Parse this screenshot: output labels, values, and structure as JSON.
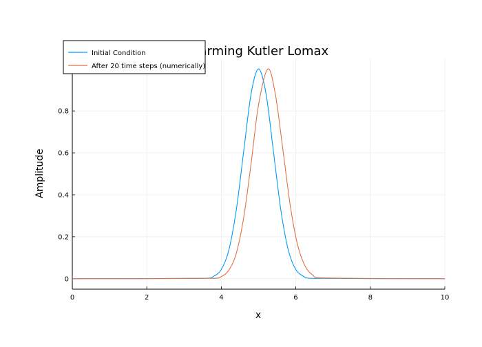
{
  "chart_data": {
    "type": "line",
    "title": "Warming Kutler Lomax",
    "xlabel": "x",
    "ylabel": "Amplitude",
    "xlim": [
      0,
      10
    ],
    "ylim": [
      -0.05,
      1.05
    ],
    "x_ticks": [
      0,
      2,
      4,
      6,
      8,
      10
    ],
    "x_tick_labels": [
      "0",
      "2",
      "4",
      "6",
      "8",
      "10"
    ],
    "y_ticks": [
      0,
      0.2,
      0.4,
      0.6,
      0.8
    ],
    "y_tick_labels": [
      "0",
      "0.2",
      "0.4",
      "0.6",
      "0.8"
    ],
    "grid": true,
    "legend_position": "top-left",
    "series": [
      {
        "name": "Initial Condition",
        "color": "#009af9",
        "x": [
          0,
          3.6,
          3.8,
          4.0,
          4.2,
          4.4,
          4.6,
          4.8,
          5.0,
          5.2,
          5.4,
          5.6,
          5.8,
          6.0,
          6.2,
          6.4,
          10
        ],
        "values": [
          0,
          0.002,
          0.012,
          0.044,
          0.135,
          0.325,
          0.606,
          0.882,
          1.0,
          0.882,
          0.606,
          0.325,
          0.135,
          0.044,
          0.012,
          0.002,
          0
        ]
      },
      {
        "name": "After 20 time steps (numerically)",
        "color": "#e26f46",
        "x": [
          0,
          3.8,
          4.0,
          4.2,
          4.4,
          4.6,
          4.8,
          5.0,
          5.25,
          5.45,
          5.65,
          5.85,
          6.05,
          6.25,
          6.45,
          6.65,
          10
        ],
        "values": [
          0,
          0.002,
          0.01,
          0.04,
          0.12,
          0.29,
          0.55,
          0.83,
          1.0,
          0.88,
          0.62,
          0.35,
          0.16,
          0.06,
          0.018,
          0.004,
          0
        ]
      }
    ]
  }
}
